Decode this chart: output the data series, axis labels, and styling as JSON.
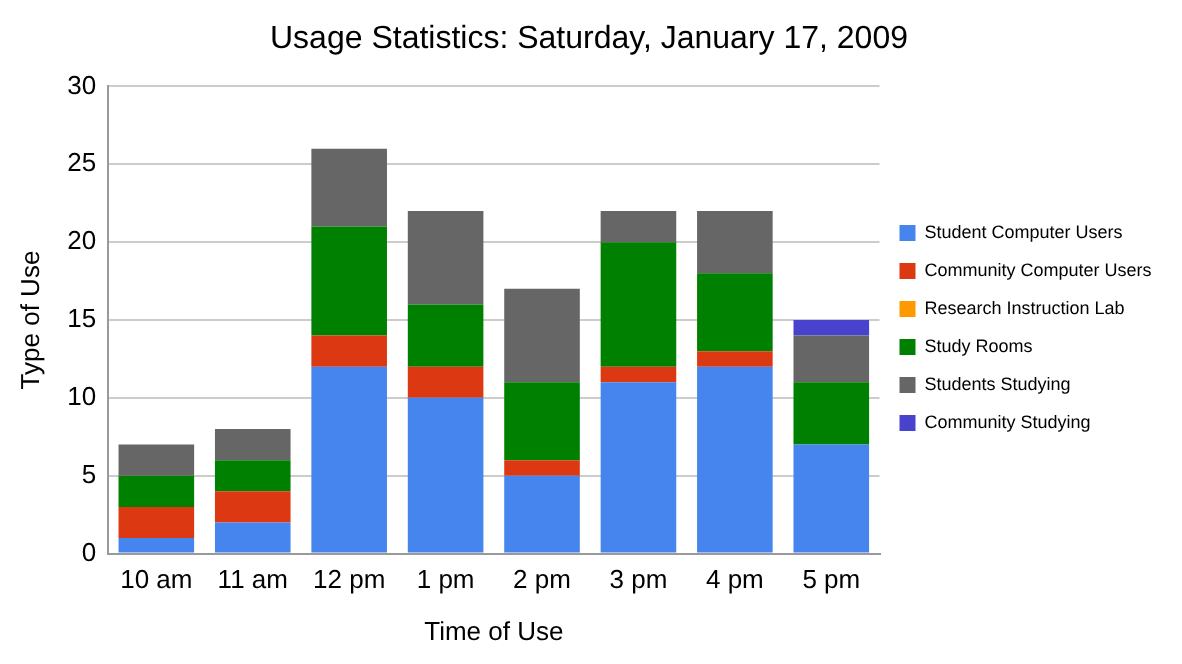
{
  "chart_data": {
    "type": "bar",
    "title": "Usage Statistics: Saturday, January 17, 2009",
    "xlabel": "Time of Use",
    "ylabel": "Type of Use",
    "stacked": true,
    "categories": [
      "10 am",
      "11 am",
      "12 pm",
      "1 pm",
      "2 pm",
      "3 pm",
      "4 pm",
      "5 pm"
    ],
    "series": [
      {
        "name": "Student Computer Users",
        "color": "#4684ee",
        "values": [
          1,
          2,
          12,
          10,
          5,
          11,
          12,
          7
        ]
      },
      {
        "name": "Community Computer Users",
        "color": "#dc3912",
        "values": [
          2,
          2,
          2,
          2,
          1,
          1,
          1,
          0
        ]
      },
      {
        "name": "Research Instruction Lab",
        "color": "#ff9900",
        "values": [
          0,
          0,
          0,
          0,
          0,
          0,
          0,
          0
        ]
      },
      {
        "name": "Study Rooms",
        "color": "#008000",
        "values": [
          2,
          2,
          7,
          4,
          5,
          8,
          5,
          4
        ]
      },
      {
        "name": "Students Studying",
        "color": "#666666",
        "values": [
          2,
          2,
          5,
          6,
          6,
          2,
          4,
          3
        ]
      },
      {
        "name": "Community Studying",
        "color": "#4942cc",
        "values": [
          0,
          0,
          0,
          0,
          0,
          0,
          0,
          1
        ]
      }
    ],
    "ylim": [
      0,
      30
    ],
    "yticks": [
      0,
      5,
      10,
      15,
      20,
      25,
      30
    ],
    "grid": "y",
    "legend": "right"
  }
}
